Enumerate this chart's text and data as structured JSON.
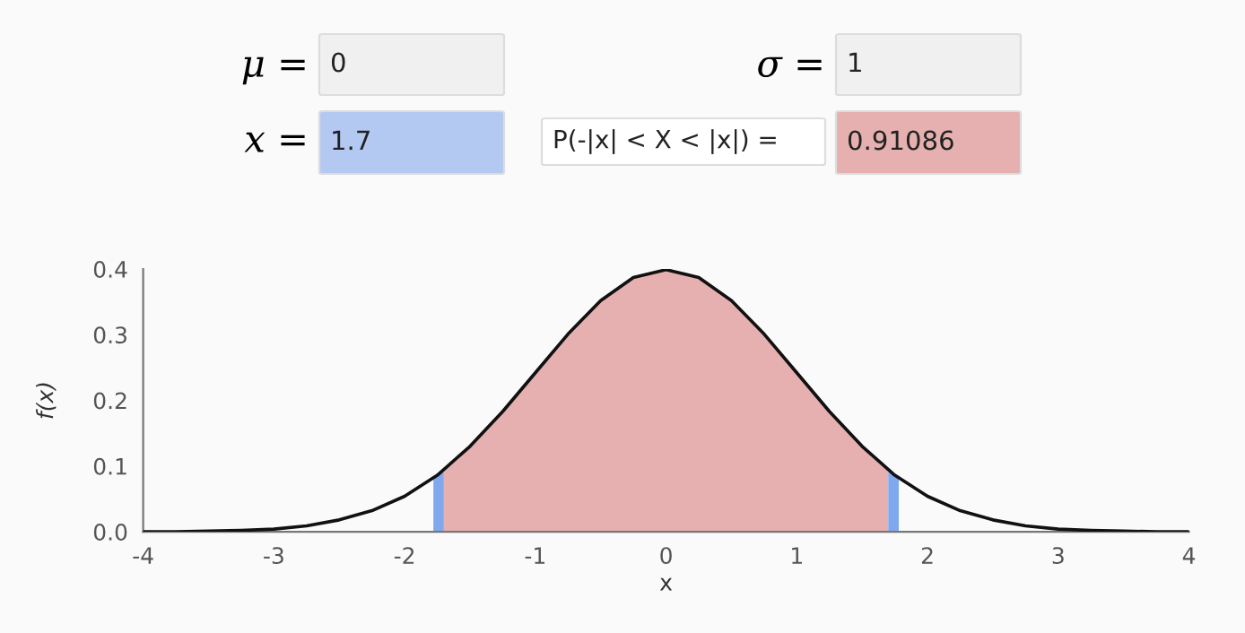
{
  "chart_data": {
    "type": "line",
    "xlabel": "x",
    "ylabel": "f(x)",
    "annotations": [
      "μ =",
      "0",
      "σ =",
      "1",
      "x =",
      "1.7",
      "P(-|x| < X < |x|) =",
      "0.91086"
    ],
    "series": [
      {
        "type": "area",
        "color": "#e6b0b0",
        "x": [
          -1.7,
          -1.5,
          -1.25,
          -1,
          -0.75,
          -0.5,
          -0.25,
          0,
          0.25,
          0.5,
          0.75,
          1,
          1.25,
          1.5,
          1.7
        ],
        "values": [
          0.094,
          0.13,
          0.183,
          0.242,
          0.301,
          0.352,
          0.387,
          0.399,
          0.387,
          0.352,
          0.301,
          0.242,
          0.183,
          0.13,
          0.094
        ]
      },
      {
        "type": "area",
        "color": "#7fa8ee",
        "x": [
          -1.78,
          -1.7
        ],
        "values": [
          0.082,
          0.094
        ]
      },
      {
        "type": "area",
        "color": "#7fa8ee",
        "x": [
          1.7,
          1.78
        ],
        "values": [
          0.094,
          0.082
        ]
      },
      {
        "color": "#111111",
        "x": [
          -4,
          -3.75,
          -3.5,
          -3.25,
          -3,
          -2.75,
          -2.5,
          -2.25,
          -2,
          -1.75,
          -1.5,
          -1.25,
          -1,
          -0.75,
          -0.5,
          -0.25,
          0,
          0.25,
          0.5,
          0.75,
          1,
          1.25,
          1.5,
          1.75,
          2,
          2.25,
          2.5,
          2.75,
          3,
          3.25,
          3.5,
          3.75,
          4
        ],
        "values": [
          0.0,
          0.0,
          0.001,
          0.002,
          0.004,
          0.009,
          0.018,
          0.032,
          0.054,
          0.086,
          0.13,
          0.183,
          0.242,
          0.301,
          0.352,
          0.387,
          0.399,
          0.387,
          0.352,
          0.301,
          0.242,
          0.183,
          0.13,
          0.086,
          0.054,
          0.032,
          0.018,
          0.009,
          0.004,
          0.002,
          0.001,
          0.0,
          0.0
        ]
      }
    ],
    "xlim": [
      -4,
      4
    ],
    "xticks": [
      -4,
      -3,
      -2,
      -1,
      0,
      1,
      2,
      3,
      4
    ],
    "ylim": [
      0,
      0.4
    ],
    "yticks": [
      {
        "value": 0,
        "label": "0.0"
      },
      0.1,
      0.2,
      0.3,
      0.4
    ]
  }
}
